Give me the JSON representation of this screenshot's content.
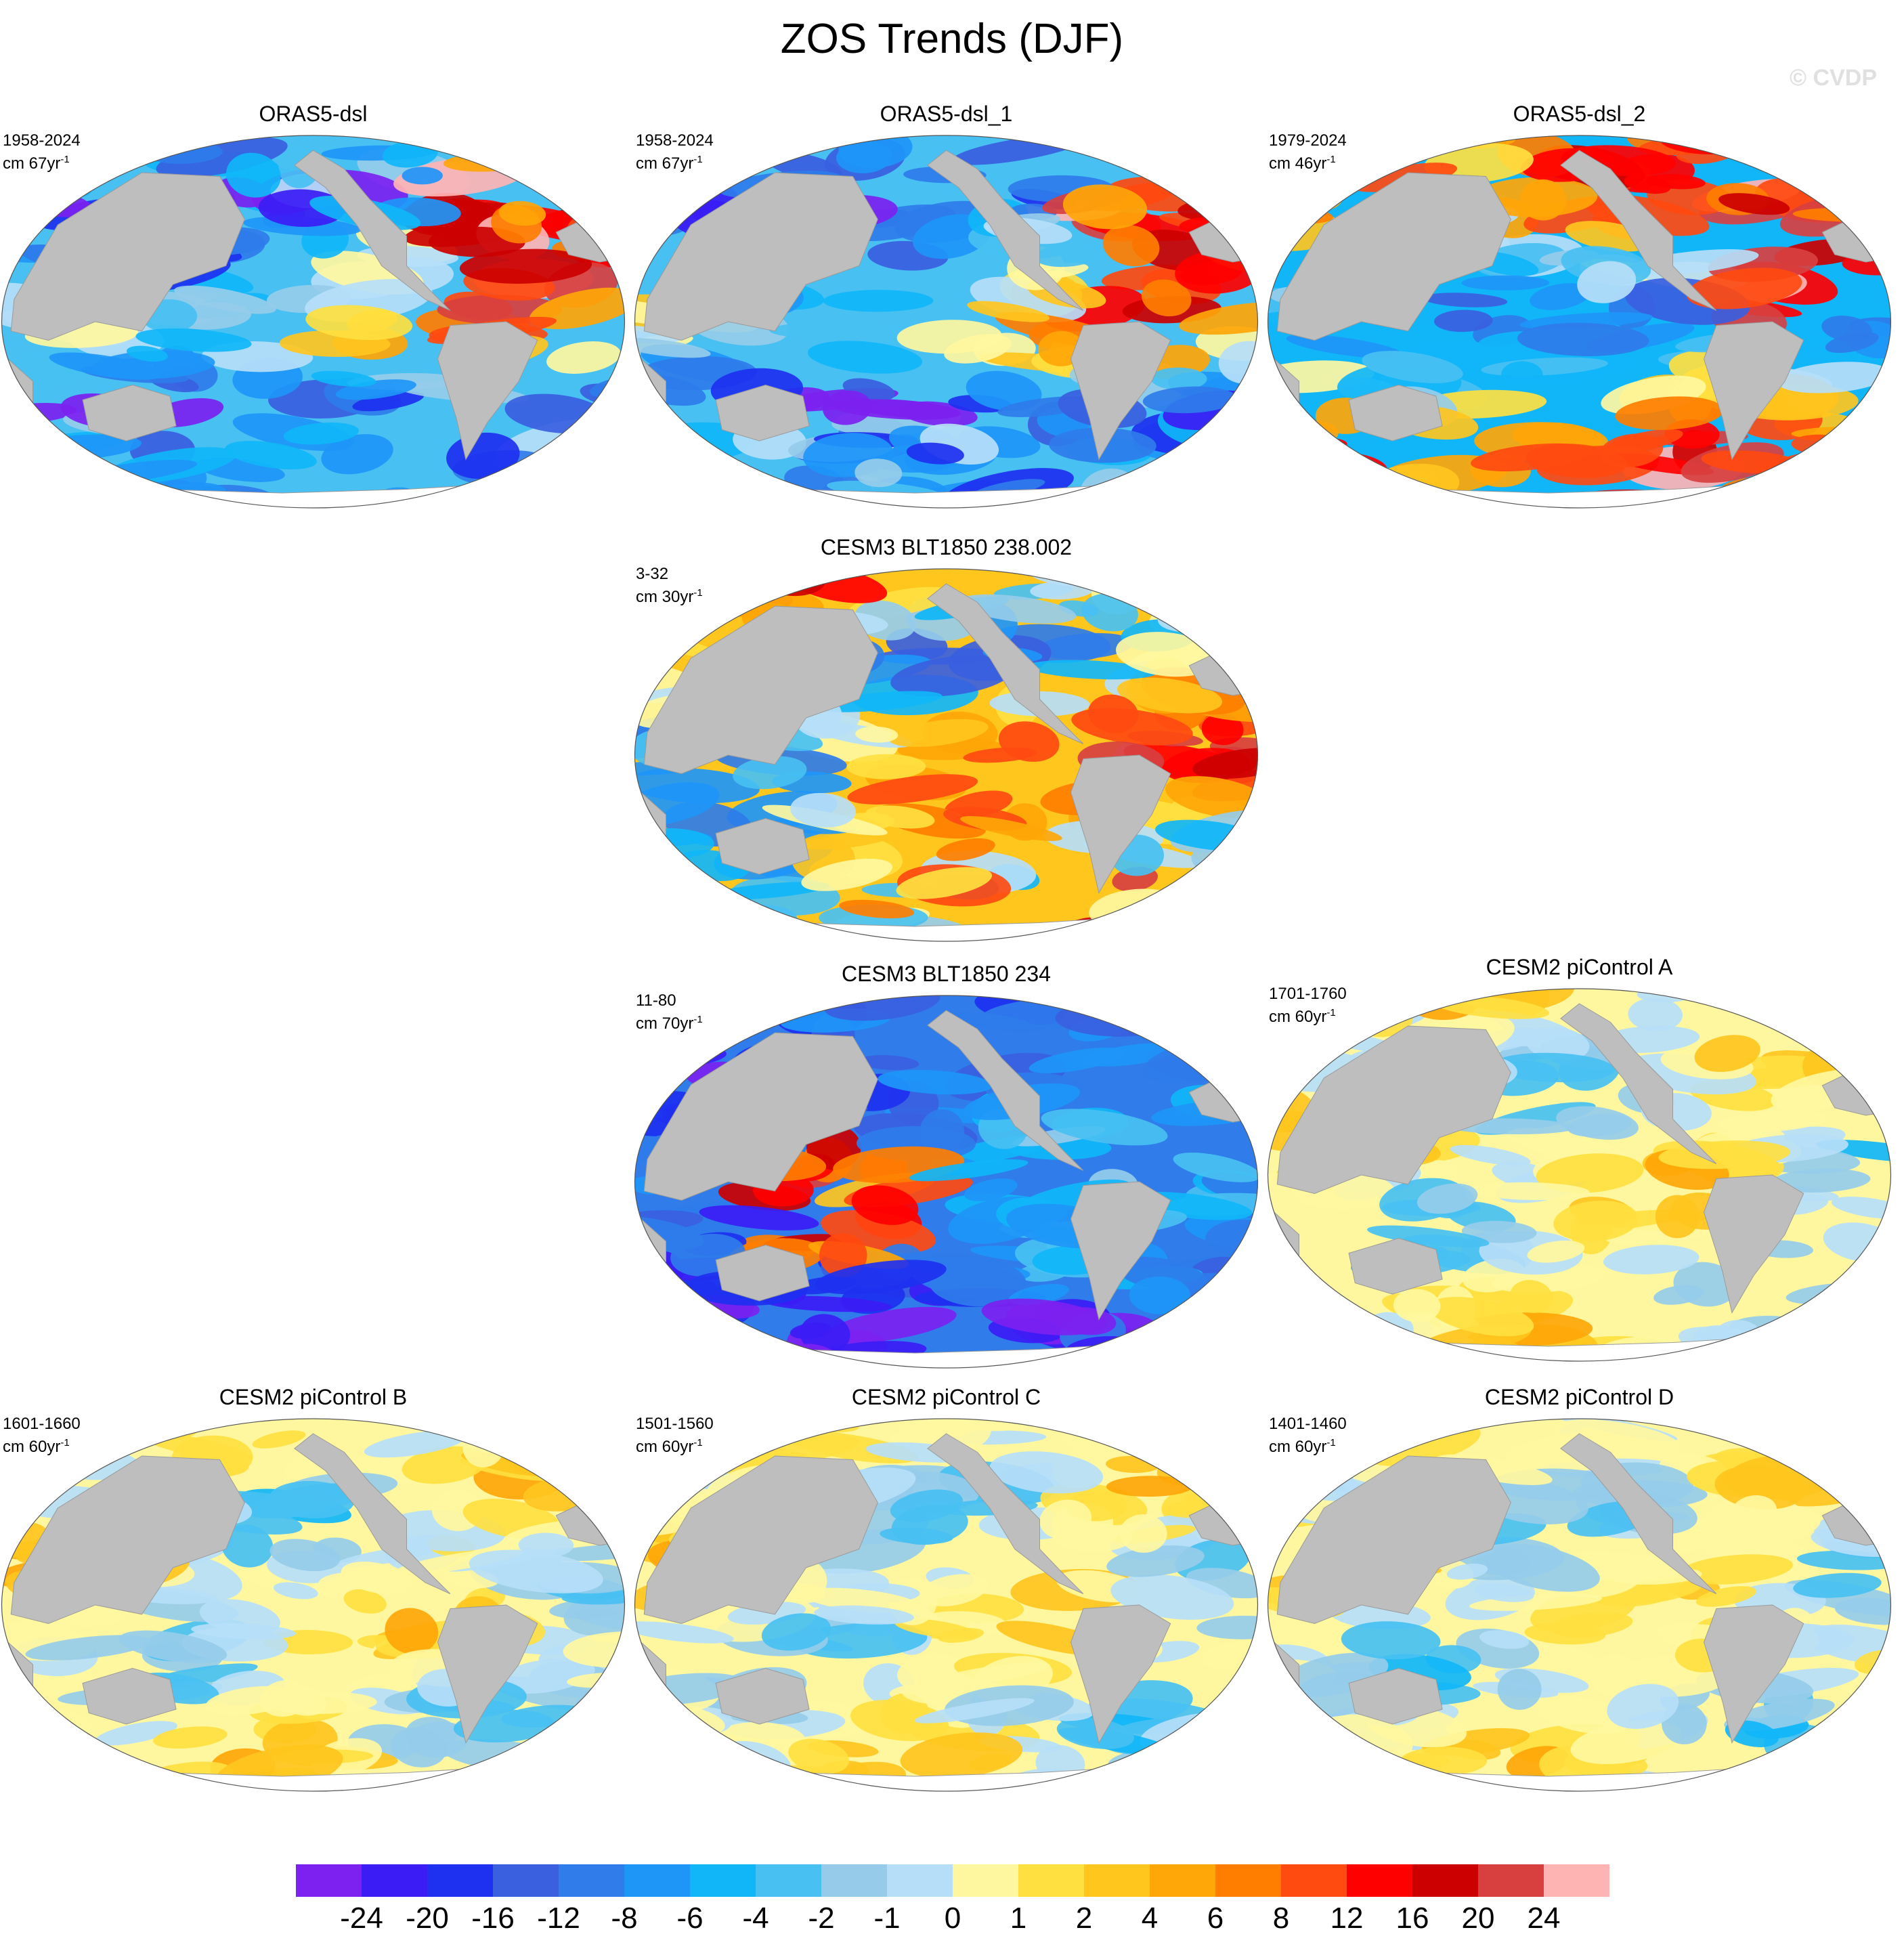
{
  "figure": {
    "title": "ZOS Trends (DJF)",
    "copyright": "© CVDP"
  },
  "panels": [
    {
      "name": "ORAS5-dsl",
      "period": "1958-2024",
      "unit_base": "cm 67yr",
      "unit_exp": "-1",
      "pattern": "reanalysis_a"
    },
    {
      "name": "ORAS5-dsl_1",
      "period": "1958-2024",
      "unit_base": "cm 67yr",
      "unit_exp": "-1",
      "pattern": "reanalysis_a"
    },
    {
      "name": "ORAS5-dsl_2",
      "period": "1979-2024",
      "unit_base": "cm 46yr",
      "unit_exp": "-1",
      "pattern": "reanalysis_b"
    },
    {
      "name": "CESM3 BLT1850 238.002",
      "period": "3-32",
      "unit_base": "cm 30yr",
      "unit_exp": "-1",
      "pattern": "cesm3_a"
    },
    {
      "name": "CESM3 BLT1850 234",
      "period": "11-80",
      "unit_base": "cm 70yr",
      "unit_exp": "-1",
      "pattern": "cesm3_b"
    },
    {
      "name": "CESM2 piControl A",
      "period": "1701-1760",
      "unit_base": "cm 60yr",
      "unit_exp": "-1",
      "pattern": "picontrol"
    },
    {
      "name": "CESM2 piControl B",
      "period": "1601-1660",
      "unit_base": "cm 60yr",
      "unit_exp": "-1",
      "pattern": "picontrol"
    },
    {
      "name": "CESM2 piControl C",
      "period": "1501-1560",
      "unit_base": "cm 60yr",
      "unit_exp": "-1",
      "pattern": "picontrol"
    },
    {
      "name": "CESM2 piControl D",
      "period": "1401-1460",
      "unit_base": "cm 60yr",
      "unit_exp": "-1",
      "pattern": "picontrol"
    }
  ],
  "colorbar": {
    "colors": [
      "#7c21f0",
      "#3b1cf5",
      "#1e30f0",
      "#3a60e0",
      "#2f7cea",
      "#1e96f8",
      "#10b6f8",
      "#48c0f2",
      "#96ccea",
      "#b6def8",
      "#fff7a0",
      "#ffe040",
      "#ffc61e",
      "#ffa608",
      "#ff7e00",
      "#ff4a10",
      "#ff0000",
      "#cc0000",
      "#d84040",
      "#ffb4b4"
    ],
    "labels": [
      "-24",
      "-20",
      "-16",
      "-12",
      "-8",
      "-6",
      "-4",
      "-2",
      "-1",
      "0",
      "1",
      "2",
      "4",
      "6",
      "8",
      "12",
      "16",
      "20",
      "24"
    ]
  }
}
